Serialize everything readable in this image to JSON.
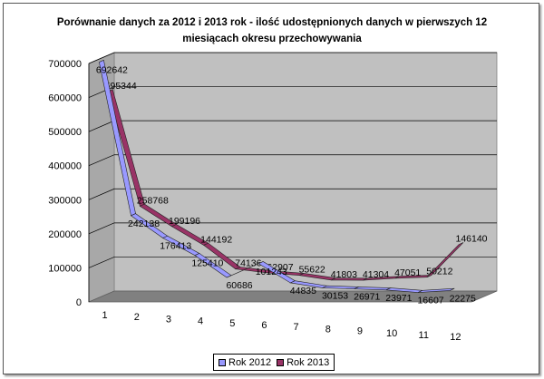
{
  "chart_data": {
    "type": "line",
    "title": "Porównanie danych za 2012 i 2013 rok - ilość udostępnionych danych w pierwszych 12 miesiącach okresu przechowywania",
    "categories": [
      "1",
      "2",
      "3",
      "4",
      "5",
      "6",
      "7",
      "8",
      "9",
      "10",
      "11",
      "12"
    ],
    "series": [
      {
        "name": "Rok 2012",
        "color": "#9999ff",
        "values": [
          692642,
          242138,
          176413,
          125410,
          60686,
          101243,
          44835,
          30153,
          26971,
          23971,
          16607,
          22275
        ]
      },
      {
        "name": "Rok 2013",
        "color": "#993366",
        "values": [
          595344,
          258768,
          199196,
          144192,
          74136,
          62907,
          55622,
          41803,
          41304,
          47051,
          50212,
          146140
        ]
      }
    ],
    "y_ticks": [
      "0",
      "100000",
      "200000",
      "300000",
      "400000",
      "500000",
      "600000",
      "700000"
    ],
    "ylim": [
      0,
      700000
    ],
    "grid": true,
    "legend_position": "bottom",
    "style": "3d-line"
  }
}
